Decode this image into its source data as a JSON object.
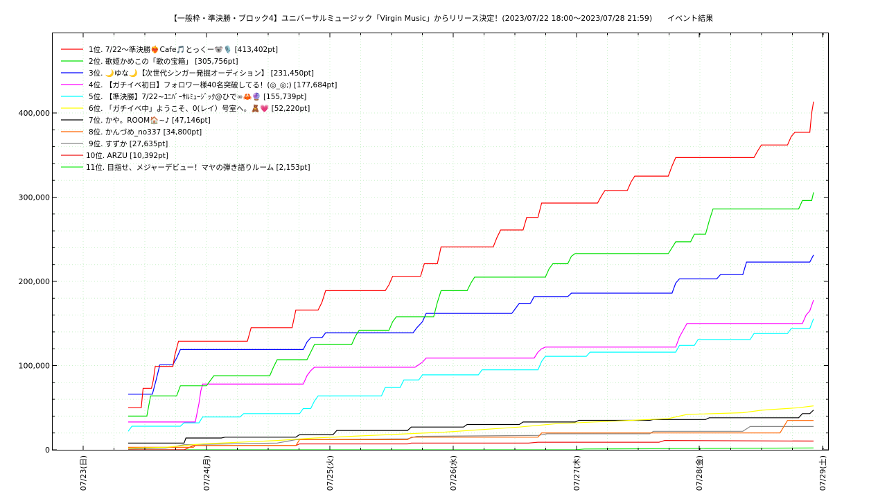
{
  "chart_data": {
    "type": "line",
    "title": "【一般枠・準決勝・ブロック4】ユニバーサルミュージック「Virgin Music」からリリース決定！(2023/07/22 18:00～2023/07/28 21:59)　　イベント結果",
    "xlabel": "",
    "ylabel": "",
    "x_ticks": [
      "07/23(日)",
      "07/24(月)",
      "07/25(火)",
      "07/26(水)",
      "07/27(木)",
      "07/28(金)",
      "07/29(土)"
    ],
    "y_ticks": [
      "0",
      "100,000",
      "200,000",
      "300,000",
      "400,000"
    ],
    "ylim": [
      0,
      420000
    ],
    "x_range_days": [
      "07/22 18:00",
      "07/28 21:59"
    ],
    "grid": true,
    "legend_position": "top-left",
    "series": [
      {
        "name": "1位. 7/22〜準決勝❤️‍🔥Cafe🎵とっくー🐨🎙️ [413,402pt]",
        "color": "#ff0000",
        "points": [
          [
            0.0,
            50000
          ],
          [
            0.7,
            50000
          ],
          [
            0.8,
            73000
          ],
          [
            1.25,
            73000
          ],
          [
            1.35,
            83000
          ],
          [
            1.45,
            99000
          ],
          [
            2.4,
            99000
          ],
          [
            2.5,
            112000
          ],
          [
            2.7,
            129000
          ],
          [
            6.4,
            129000
          ],
          [
            6.6,
            145000
          ],
          [
            8.8,
            145000
          ],
          [
            9.0,
            166000
          ],
          [
            10.2,
            166000
          ],
          [
            10.4,
            175000
          ],
          [
            10.6,
            189000
          ],
          [
            13.8,
            189000
          ],
          [
            14.0,
            196000
          ],
          [
            14.2,
            206000
          ],
          [
            15.7,
            206000
          ],
          [
            15.9,
            221000
          ],
          [
            16.6,
            221000
          ],
          [
            16.8,
            241000
          ],
          [
            19.6,
            241000
          ],
          [
            19.8,
            252000
          ],
          [
            20.0,
            261000
          ],
          [
            21.2,
            261000
          ],
          [
            21.4,
            276000
          ],
          [
            22.0,
            276000
          ],
          [
            22.2,
            293000
          ],
          [
            25.2,
            293000
          ],
          [
            25.4,
            301000
          ],
          [
            25.6,
            308000
          ],
          [
            26.8,
            308000
          ],
          [
            27.0,
            318000
          ],
          [
            27.2,
            325000
          ],
          [
            29.0,
            325000
          ],
          [
            29.2,
            337000
          ],
          [
            29.4,
            347000
          ],
          [
            33.6,
            347000
          ],
          [
            33.8,
            355000
          ],
          [
            34.0,
            362000
          ],
          [
            35.4,
            362000
          ],
          [
            35.6,
            372000
          ],
          [
            35.8,
            377000
          ],
          [
            36.6,
            377000
          ],
          [
            36.7,
            400000
          ],
          [
            36.8,
            413402
          ]
        ]
      },
      {
        "name": "2位. 歌姫かめこの「歌の宝箱」 [305,756pt]",
        "color": "#00e000",
        "points": [
          [
            0.0,
            40000
          ],
          [
            1.0,
            40000
          ],
          [
            1.2,
            64000
          ],
          [
            2.6,
            64000
          ],
          [
            2.8,
            76000
          ],
          [
            4.2,
            76000
          ],
          [
            4.4,
            82000
          ],
          [
            4.6,
            88000
          ],
          [
            7.6,
            88000
          ],
          [
            7.8,
            98000
          ],
          [
            8.0,
            107000
          ],
          [
            9.6,
            107000
          ],
          [
            9.8,
            116000
          ],
          [
            10.0,
            125000
          ],
          [
            12.0,
            125000
          ],
          [
            12.2,
            135000
          ],
          [
            12.4,
            142000
          ],
          [
            14.0,
            142000
          ],
          [
            14.2,
            152000
          ],
          [
            14.4,
            158000
          ],
          [
            16.4,
            158000
          ],
          [
            16.6,
            175000
          ],
          [
            16.8,
            189000
          ],
          [
            18.2,
            189000
          ],
          [
            18.4,
            198000
          ],
          [
            18.6,
            205000
          ],
          [
            22.4,
            205000
          ],
          [
            22.6,
            215000
          ],
          [
            22.8,
            221000
          ],
          [
            23.6,
            221000
          ],
          [
            23.8,
            230000
          ],
          [
            24.0,
            233000
          ],
          [
            29.0,
            233000
          ],
          [
            29.2,
            240000
          ],
          [
            29.4,
            247000
          ],
          [
            30.2,
            247000
          ],
          [
            30.4,
            256000
          ],
          [
            31.0,
            256000
          ],
          [
            31.2,
            272000
          ],
          [
            31.4,
            286000
          ],
          [
            36.0,
            286000
          ],
          [
            36.2,
            296000
          ],
          [
            36.7,
            296000
          ],
          [
            36.8,
            305756
          ]
        ]
      },
      {
        "name": "3位. 🌙ゆな🌙【次世代シンガー発掘オーディション】 [231,450pt]",
        "color": "#0000ff",
        "points": [
          [
            0.0,
            66000
          ],
          [
            1.3,
            66000
          ],
          [
            1.5,
            83000
          ],
          [
            1.7,
            101000
          ],
          [
            2.4,
            101000
          ],
          [
            2.6,
            109000
          ],
          [
            2.8,
            119000
          ],
          [
            9.4,
            119000
          ],
          [
            9.6,
            128000
          ],
          [
            9.8,
            133000
          ],
          [
            10.4,
            133000
          ],
          [
            10.6,
            139000
          ],
          [
            15.3,
            139000
          ],
          [
            15.5,
            145000
          ],
          [
            15.8,
            152000
          ],
          [
            16.0,
            162000
          ],
          [
            20.6,
            162000
          ],
          [
            20.8,
            168000
          ],
          [
            21.0,
            174000
          ],
          [
            21.6,
            174000
          ],
          [
            21.8,
            182000
          ],
          [
            23.6,
            182000
          ],
          [
            23.8,
            186000
          ],
          [
            27.0,
            186000
          ],
          [
            27.4,
            186000
          ],
          [
            29.2,
            186000
          ],
          [
            29.4,
            198000
          ],
          [
            29.6,
            203000
          ],
          [
            31.6,
            203000
          ],
          [
            31.8,
            208000
          ],
          [
            33.0,
            208000
          ],
          [
            33.2,
            223000
          ],
          [
            36.6,
            223000
          ],
          [
            36.8,
            231450
          ]
        ]
      },
      {
        "name": "4位. 【ガチイベ初日】フォロワー様40名突破してる！(◎_◎;) [177,684pt]",
        "color": "#ff00ff",
        "points": [
          [
            0.0,
            33000
          ],
          [
            3.6,
            33000
          ],
          [
            3.8,
            55000
          ],
          [
            3.9,
            70000
          ],
          [
            4.0,
            78000
          ],
          [
            9.4,
            78000
          ],
          [
            9.6,
            88000
          ],
          [
            9.8,
            94000
          ],
          [
            10.0,
            98000
          ],
          [
            15.4,
            98000
          ],
          [
            15.8,
            104000
          ],
          [
            16.0,
            109000
          ],
          [
            21.8,
            109000
          ],
          [
            22.0,
            116000
          ],
          [
            22.2,
            120000
          ],
          [
            22.4,
            122000
          ],
          [
            27.0,
            122000
          ],
          [
            29.4,
            122000
          ],
          [
            29.6,
            134000
          ],
          [
            29.8,
            142000
          ],
          [
            30.0,
            150000
          ],
          [
            36.2,
            150000
          ],
          [
            36.4,
            160000
          ],
          [
            36.6,
            165000
          ],
          [
            36.8,
            177684
          ]
        ]
      },
      {
        "name": "5位. 【準決勝】7/22~ﾕﾆﾊﾞｰｻﾙﾐｭｰｼﾞｯｸ@ひで∞🦀🔮 [155,739pt]",
        "color": "#00ffff",
        "points": [
          [
            0.0,
            22000
          ],
          [
            0.2,
            28000
          ],
          [
            2.8,
            28000
          ],
          [
            3.0,
            32000
          ],
          [
            3.8,
            32000
          ],
          [
            4.0,
            39000
          ],
          [
            6.0,
            39000
          ],
          [
            6.2,
            43000
          ],
          [
            9.2,
            43000
          ],
          [
            9.4,
            49000
          ],
          [
            9.8,
            49000
          ],
          [
            10.0,
            58000
          ],
          [
            10.2,
            64000
          ],
          [
            13.6,
            64000
          ],
          [
            13.8,
            74000
          ],
          [
            14.6,
            74000
          ],
          [
            14.8,
            83000
          ],
          [
            15.6,
            83000
          ],
          [
            15.8,
            89000
          ],
          [
            18.8,
            89000
          ],
          [
            19.0,
            95000
          ],
          [
            22.0,
            95000
          ],
          [
            22.2,
            105000
          ],
          [
            22.4,
            111000
          ],
          [
            24.6,
            111000
          ],
          [
            24.8,
            116000
          ],
          [
            29.4,
            116000
          ],
          [
            29.6,
            124000
          ],
          [
            30.4,
            124000
          ],
          [
            30.6,
            131000
          ],
          [
            33.4,
            131000
          ],
          [
            33.6,
            138000
          ],
          [
            35.4,
            138000
          ],
          [
            35.6,
            144000
          ],
          [
            36.6,
            144000
          ],
          [
            36.8,
            155739
          ]
        ]
      },
      {
        "name": "6位. 「ガチイベ中」ようこそ、0(レイ）号室へ。🧸💗 [52,220pt]",
        "color": "#ffff00",
        "points": [
          [
            0.0,
            2000
          ],
          [
            2.0,
            3000
          ],
          [
            4.0,
            7000
          ],
          [
            8.0,
            11000
          ],
          [
            10.0,
            14000
          ],
          [
            14.0,
            18000
          ],
          [
            17.0,
            21000
          ],
          [
            21.0,
            27000
          ],
          [
            23.0,
            31000
          ],
          [
            27.0,
            35000
          ],
          [
            29.0,
            37000
          ],
          [
            30.0,
            42000
          ],
          [
            33.0,
            44000
          ],
          [
            34.0,
            47000
          ],
          [
            36.0,
            50000
          ],
          [
            36.8,
            52220
          ]
        ]
      },
      {
        "name": "7位. かや。ROOM🏠~♪ [47,146pt]",
        "color": "#000000",
        "points": [
          [
            0.0,
            8000
          ],
          [
            3.0,
            8000
          ],
          [
            3.1,
            14000
          ],
          [
            5.0,
            14000
          ],
          [
            5.2,
            15000
          ],
          [
            9.0,
            15000
          ],
          [
            9.2,
            18000
          ],
          [
            11.0,
            18000
          ],
          [
            11.2,
            23000
          ],
          [
            15.0,
            23000
          ],
          [
            15.2,
            27000
          ],
          [
            18.0,
            27000
          ],
          [
            18.2,
            30000
          ],
          [
            21.0,
            30000
          ],
          [
            21.2,
            33000
          ],
          [
            24.0,
            33000
          ],
          [
            24.2,
            35000
          ],
          [
            28.0,
            35000
          ],
          [
            28.2,
            36000
          ],
          [
            31.0,
            36000
          ],
          [
            31.2,
            38000
          ],
          [
            36.0,
            38000
          ],
          [
            36.2,
            43000
          ],
          [
            36.6,
            43000
          ],
          [
            36.8,
            47146
          ]
        ]
      },
      {
        "name": "8位. かんづめ_no337 [34,800pt]",
        "color": "#ff6600",
        "points": [
          [
            0.0,
            3000
          ],
          [
            3.5,
            3000
          ],
          [
            3.6,
            5000
          ],
          [
            9.0,
            5000
          ],
          [
            9.2,
            12000
          ],
          [
            15.0,
            12000
          ],
          [
            15.2,
            15000
          ],
          [
            22.0,
            15000
          ],
          [
            22.2,
            20000
          ],
          [
            32.0,
            20000
          ],
          [
            35.0,
            20000
          ],
          [
            35.4,
            34800
          ],
          [
            36.8,
            34800
          ]
        ]
      },
      {
        "name": "9位. すずか [27,635pt]",
        "color": "#888888",
        "points": [
          [
            0.0,
            1000
          ],
          [
            2.0,
            2000
          ],
          [
            3.0,
            6000
          ],
          [
            8.0,
            8000
          ],
          [
            8.5,
            10000
          ],
          [
            9.0,
            12000
          ],
          [
            15.0,
            13000
          ],
          [
            15.5,
            16000
          ],
          [
            22.0,
            17000
          ],
          [
            22.5,
            19000
          ],
          [
            28.0,
            19000
          ],
          [
            28.2,
            22000
          ],
          [
            33.0,
            22000
          ],
          [
            33.4,
            27635
          ],
          [
            36.8,
            27635
          ]
        ]
      },
      {
        "name": "10位. ARZU [10,392pt]",
        "color": "#ee1111",
        "points": [
          [
            0.0,
            0
          ],
          [
            3.0,
            0
          ],
          [
            3.5,
            5000
          ],
          [
            9.0,
            5000
          ],
          [
            9.2,
            7000
          ],
          [
            15.0,
            7000
          ],
          [
            15.2,
            8000
          ],
          [
            21.5,
            8000
          ],
          [
            22.0,
            9000
          ],
          [
            27.0,
            9000
          ],
          [
            28.5,
            9000
          ],
          [
            28.8,
            11000
          ],
          [
            36.8,
            10392
          ]
        ]
      },
      {
        "name": "11位. 目指せ、メジャーデビュー！マヤの弾き語りルーム [2,153pt]",
        "color": "#22ee22",
        "points": [
          [
            0.0,
            0
          ],
          [
            24.0,
            0
          ],
          [
            24.5,
            1000
          ],
          [
            30.0,
            1500
          ],
          [
            36.8,
            2153
          ]
        ]
      }
    ]
  }
}
